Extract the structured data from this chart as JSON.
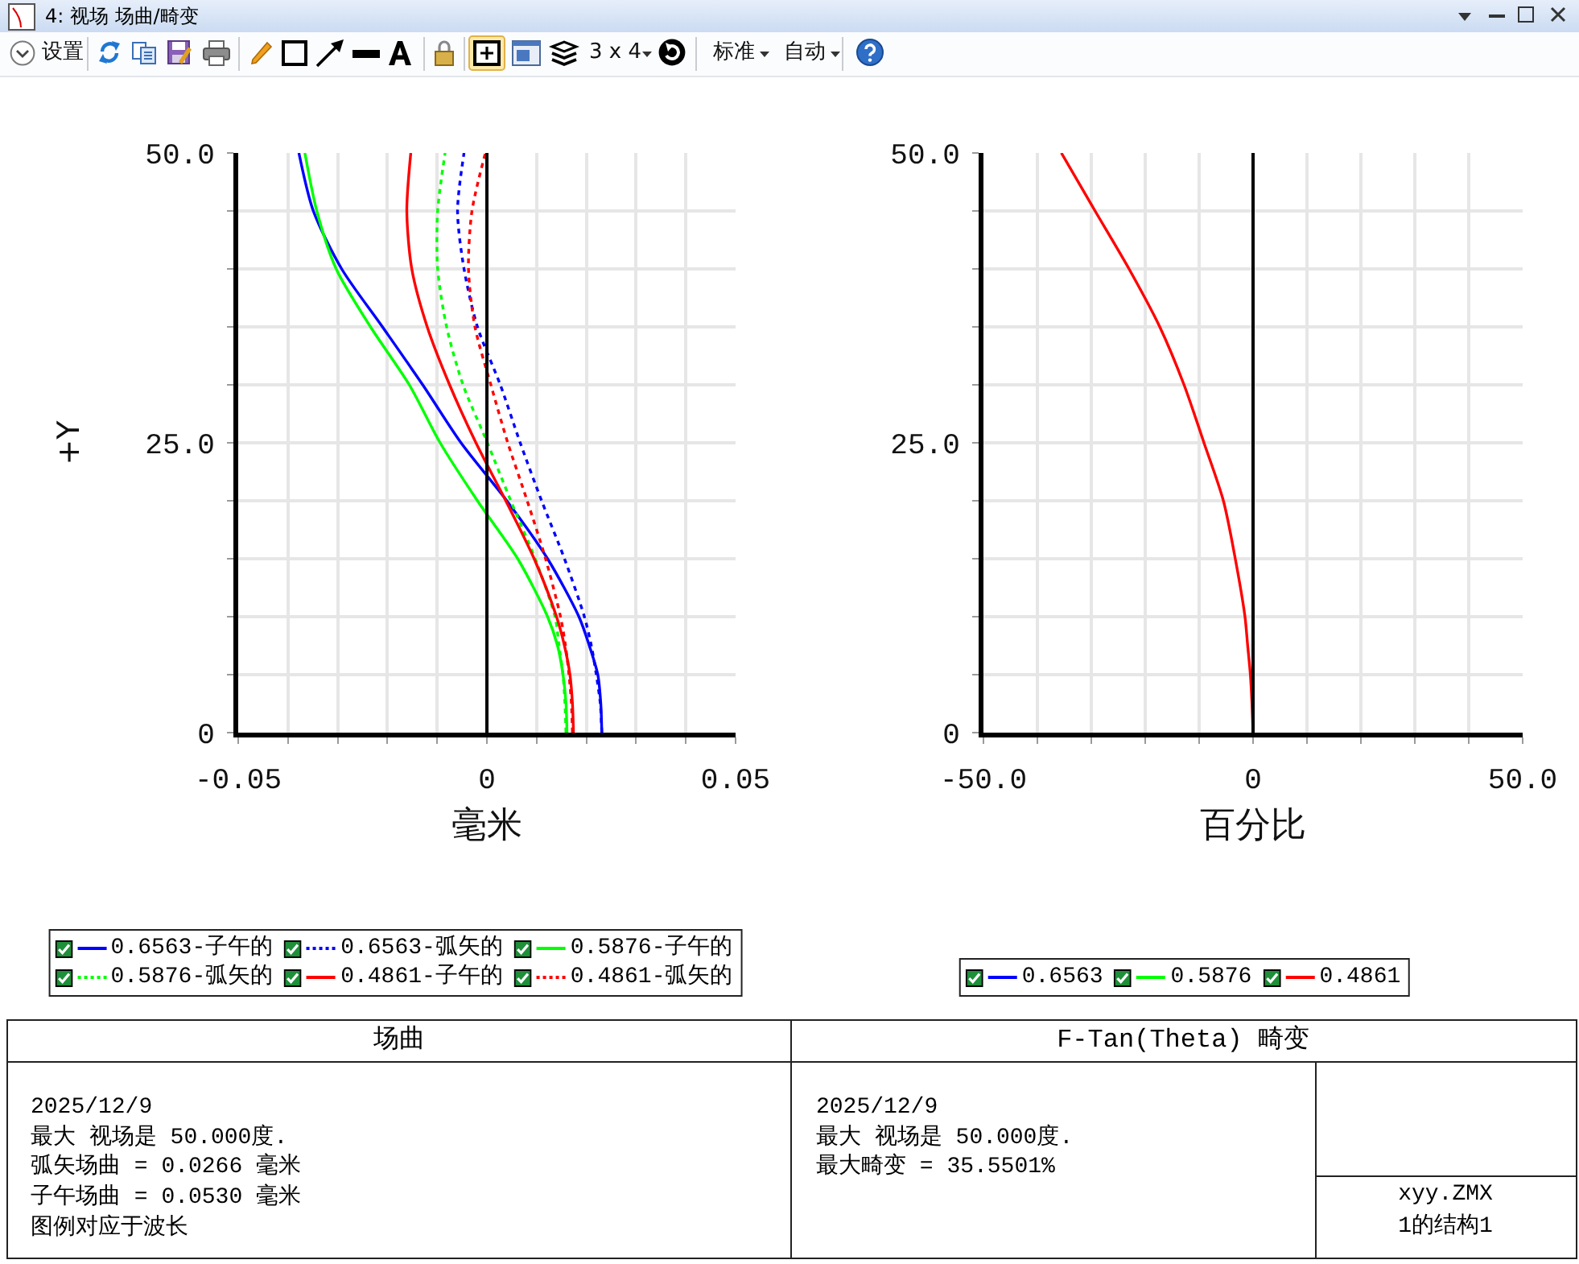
{
  "chart_data": [
    {
      "type": "other",
      "title": "4: 视场 场曲/畸变",
      "annotations": [
        "设置",
        "3 x 4",
        "标准",
        "自动"
      ]
    },
    {
      "type": "line",
      "title": "场曲",
      "xlabel": "毫米",
      "ylabel": "+Y",
      "xlim": [
        -0.05,
        0.05
      ],
      "ylim": [
        0,
        50
      ],
      "xticks": [
        -0.05,
        {
          "value": -0.04,
          "label": null
        },
        {
          "value": -0.03,
          "label": null
        },
        {
          "value": -0.02,
          "label": null
        },
        {
          "value": -0.01,
          "label": null
        },
        0,
        {
          "value": 0.01,
          "label": null
        },
        {
          "value": 0.02,
          "label": null
        },
        {
          "value": 0.03,
          "label": null
        },
        {
          "value": 0.04,
          "label": null
        },
        0.05
      ],
      "yticks": [
        0,
        {
          "value": 5,
          "label": null
        },
        {
          "value": 10,
          "label": null
        },
        {
          "value": 15,
          "label": null
        },
        {
          "value": 20,
          "label": null
        },
        {
          "value": 25,
          "label": "25.0"
        },
        {
          "value": 30,
          "label": null
        },
        {
          "value": 35,
          "label": null
        },
        {
          "value": 40,
          "label": null
        },
        {
          "value": 45,
          "label": null
        },
        {
          "value": 50,
          "label": "50.0"
        }
      ],
      "grid": true,
      "legend": "bottom",
      "ref_lines": [
        {
          "axis": "x",
          "value": 0,
          "color": "#000000"
        }
      ],
      "series": [
        {
          "name": "0.6563-子午的",
          "color": "#0000ff",
          "line_style": "solid",
          "x": [
            0.0231,
            0.0229,
            0.0223,
            0.0206,
            0.0185,
            0.0122,
            0.004,
            -0.0052,
            -0.0129,
            -0.021,
            -0.0292,
            -0.0349,
            -0.0378
          ],
          "values": [
            0,
            2.5,
            5,
            7.5,
            10,
            15,
            20,
            25,
            30,
            35,
            40,
            45,
            50
          ]
        },
        {
          "name": "0.6563-弧矢的",
          "color": "#0000ff",
          "line_style": "dotted",
          "x": [
            0.0231,
            0.0228,
            0.022,
            0.021,
            0.0196,
            0.0156,
            0.011,
            0.0067,
            0.0027,
            -0.0019,
            -0.0046,
            -0.0059,
            -0.0046
          ],
          "values": [
            0,
            2.5,
            5,
            7.5,
            10,
            15,
            20,
            25,
            30,
            35,
            40,
            45,
            50
          ]
        },
        {
          "name": "0.5876-子午的",
          "color": "#00ff00",
          "line_style": "solid",
          "x": [
            0.0161,
            0.0159,
            0.0153,
            0.0142,
            0.0122,
            0.0062,
            -0.0019,
            -0.0094,
            -0.0156,
            -0.0234,
            -0.0303,
            -0.0342,
            -0.0366
          ],
          "values": [
            0,
            2.5,
            5,
            7.5,
            10,
            15,
            20,
            25,
            30,
            35,
            40,
            45,
            50
          ]
        },
        {
          "name": "0.5876-弧矢的",
          "color": "#00ff00",
          "line_style": "dotted",
          "x": [
            0.0159,
            0.0157,
            0.0153,
            0.0145,
            0.0137,
            0.0097,
            0.0048,
            0.0001,
            -0.0048,
            -0.0081,
            -0.0099,
            -0.0099,
            -0.0084
          ],
          "values": [
            0,
            2.5,
            5,
            7.5,
            10,
            15,
            20,
            25,
            30,
            35,
            40,
            45,
            50
          ]
        },
        {
          "name": "0.4861-子午的",
          "color": "#ff0000",
          "line_style": "solid",
          "x": [
            0.0174,
            0.0172,
            0.0167,
            0.0156,
            0.014,
            0.0095,
            0.0038,
            -0.0022,
            -0.0075,
            -0.012,
            -0.0151,
            -0.0161,
            -0.0153
          ],
          "values": [
            0,
            2.5,
            5,
            7.5,
            10,
            15,
            20,
            25,
            30,
            35,
            40,
            45,
            50
          ]
        },
        {
          "name": "0.4861-弧矢的",
          "color": "#ff0000",
          "line_style": "dotted",
          "x": [
            0.0172,
            0.017,
            0.0165,
            0.0158,
            0.0148,
            0.0118,
            0.0081,
            0.0042,
            0.0008,
            -0.0024,
            -0.0037,
            -0.003,
            -0.0003
          ],
          "values": [
            0,
            2.5,
            5,
            7.5,
            10,
            15,
            20,
            25,
            30,
            35,
            40,
            45,
            50
          ]
        }
      ],
      "annotations": [
        "2025/12/9",
        "最大 视场是 50.000度.",
        "弧矢场曲 = 0.0266 毫米",
        "子午场曲 = 0.0530 毫米",
        "图例对应于波长"
      ]
    },
    {
      "type": "line",
      "title": "F-Tan(Theta) 畸变",
      "xlabel": "百分比",
      "xlim": [
        -50,
        50
      ],
      "ylim": [
        0,
        50
      ],
      "xticks": [
        {
          "value": -50,
          "label": "-50.0"
        },
        {
          "value": -40,
          "label": null
        },
        {
          "value": -30,
          "label": null
        },
        {
          "value": -20,
          "label": null
        },
        {
          "value": -10,
          "label": null
        },
        0,
        {
          "value": 10,
          "label": null
        },
        {
          "value": 20,
          "label": null
        },
        {
          "value": 30,
          "label": null
        },
        {
          "value": 40,
          "label": null
        },
        {
          "value": 50,
          "label": "50.0"
        }
      ],
      "yticks": [
        0,
        {
          "value": 5,
          "label": null
        },
        {
          "value": 10,
          "label": null
        },
        {
          "value": 15,
          "label": null
        },
        {
          "value": 20,
          "label": null
        },
        {
          "value": 25,
          "label": "25.0"
        },
        {
          "value": 30,
          "label": null
        },
        {
          "value": 35,
          "label": null
        },
        {
          "value": 40,
          "label": null
        },
        {
          "value": 45,
          "label": null
        },
        {
          "value": 50,
          "label": "50.0"
        }
      ],
      "grid": true,
      "legend": "bottom",
      "ref_lines": [
        {
          "axis": "x",
          "value": 0,
          "color": "#000000"
        }
      ],
      "series": [
        {
          "name": "0.6563",
          "color": "#0000ff",
          "line_style": "solid",
          "values": [
            null
          ]
        },
        {
          "name": "0.5876",
          "color": "#00ff00",
          "line_style": "solid",
          "values": [
            null
          ]
        },
        {
          "name": "0.4861",
          "color": "#ff0000",
          "line_style": "solid",
          "x": [
            0,
            -0.2,
            -0.5,
            -1.0,
            -1.5,
            -3.3,
            -5.5,
            -9.1,
            -12.8,
            -17.3,
            -23.0,
            -29.3,
            -35.55
          ],
          "values": [
            0,
            2.5,
            5,
            7.5,
            10,
            15,
            20,
            25,
            30,
            35,
            40,
            45,
            50
          ]
        }
      ],
      "annotations": [
        "2025/12/9",
        "最大 视场是 50.000度.",
        "最大畸变 = 35.5501%"
      ]
    },
    {
      "type": "other",
      "annotations": [
        "xyy.ZMX",
        "1的结构1"
      ]
    }
  ]
}
